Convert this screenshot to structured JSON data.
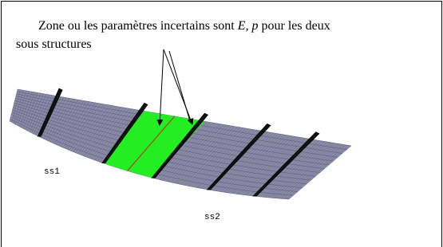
{
  "caption": {
    "line1_start": "Zone ou les paramètres incertains sont ",
    "line1_e": "E, p",
    "line1_end": " pour les deux",
    "line2": "sous structures"
  },
  "labels": {
    "ss1": "ss1",
    "ss2": "ss2"
  }
}
